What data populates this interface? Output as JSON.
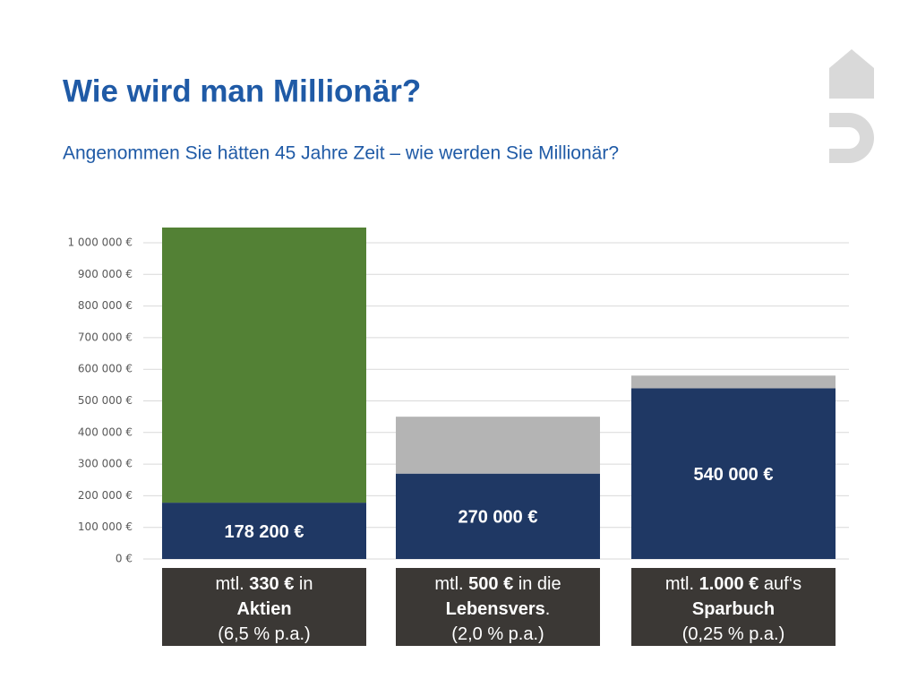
{
  "chart_data": {
    "type": "stacked-bar",
    "title": "Wie wird man Millionär?",
    "subtitle": "Angenommen Sie hätten 45 Jahre Zeit – wie werden Sie Millionär?",
    "categories": [
      [
        [
          {
            "text": "mtl. ",
            "bold": false
          },
          {
            "text": "330 €",
            "bold": true
          },
          {
            "text": " in",
            "bold": false
          }
        ],
        [
          {
            "text": "Aktien",
            "bold": true
          }
        ],
        [
          {
            "text": "(6,5 % p.a.)",
            "bold": false
          }
        ]
      ],
      [
        [
          {
            "text": "mtl. ",
            "bold": false
          },
          {
            "text": "500 €",
            "bold": true
          },
          {
            "text": " in die",
            "bold": false
          }
        ],
        [
          {
            "text": "Lebensvers",
            "bold": true
          },
          {
            "text": ".",
            "bold": false
          }
        ],
        [
          {
            "text": "(2,0 % p.a.)",
            "bold": false
          }
        ]
      ],
      [
        [
          {
            "text": "mtl. ",
            "bold": false
          },
          {
            "text": "1.000 €",
            "bold": true
          },
          {
            "text": " auf‘s",
            "bold": false
          }
        ],
        [
          {
            "text": "Sparbuch",
            "bold": true
          }
        ],
        [
          {
            "text": "(0,25 % p.a.)",
            "bold": false
          }
        ]
      ]
    ],
    "series": [
      {
        "colors": [
          "#1f3864",
          "#1f3864",
          "#1f3864"
        ],
        "values": [
          178200,
          270000,
          540000
        ],
        "value_labels": [
          "178 200 €",
          "270 000 €",
          "540 000 €"
        ]
      },
      {
        "colors": [
          "#538135",
          "#b4b4b4",
          "#b4b4b4"
        ],
        "values": [
          870000,
          180000,
          40000
        ]
      }
    ],
    "ylim": [
      0,
      1000000
    ],
    "yticks": [
      {
        "value": 0,
        "label": "0 €"
      },
      {
        "value": 100000,
        "label": "100 000 €"
      },
      {
        "value": 200000,
        "label": "200 000 €"
      },
      {
        "value": 300000,
        "label": "300 000 €"
      },
      {
        "value": 400000,
        "label": "400 000 €"
      },
      {
        "value": 500000,
        "label": "500 000 €"
      },
      {
        "value": 600000,
        "label": "600 000 €"
      },
      {
        "value": 700000,
        "label": "700 000 €"
      },
      {
        "value": 800000,
        "label": "800 000 €"
      },
      {
        "value": 900000,
        "label": "900 000 €"
      },
      {
        "value": 1000000,
        "label": "1 000 000 €"
      }
    ],
    "grid": true
  }
}
